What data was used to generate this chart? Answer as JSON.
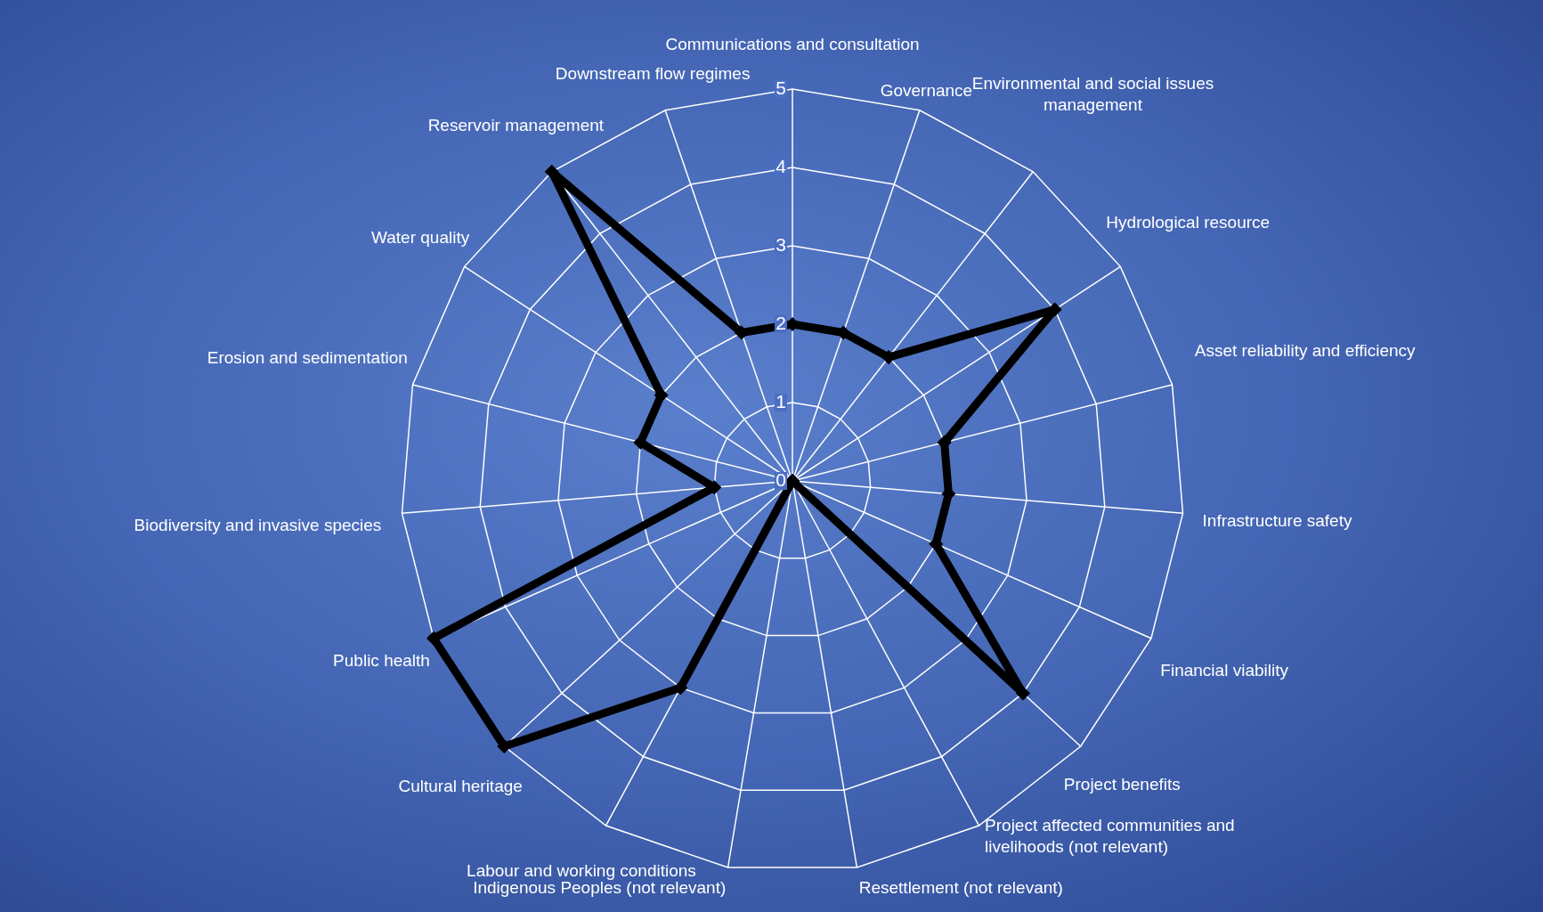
{
  "chart_data": {
    "type": "radar",
    "categories": [
      "Communications and consultation",
      "Governance",
      "Environmental and social issues management",
      "Hydrological resource",
      "Asset reliability and efficiency",
      "Infrastructure safety",
      "Financial viability",
      "Project benefits",
      "Project affected communities and livelihoods (not relevant)",
      "Resettlement (not relevant)",
      "Indigenous Peoples (not relevant)",
      "Labour and working conditions",
      "Cultural heritage",
      "Public health",
      "Biodiversity and invasive species",
      "Erosion and sedimentation",
      "Water quality",
      "Reservoir management",
      "Downstream flow regimes"
    ],
    "series": [
      {
        "color": "#000000",
        "values": [
          2,
          2,
          2,
          4,
          2,
          2,
          2,
          4,
          0,
          0,
          0,
          3,
          5,
          5,
          1,
          2,
          2,
          5,
          2
        ]
      }
    ],
    "ylim": [
      0,
      5
    ],
    "yticks": [
      0,
      1,
      2,
      3,
      4,
      5
    ],
    "grid": true,
    "marker": "diamond",
    "line_style": "solid"
  }
}
